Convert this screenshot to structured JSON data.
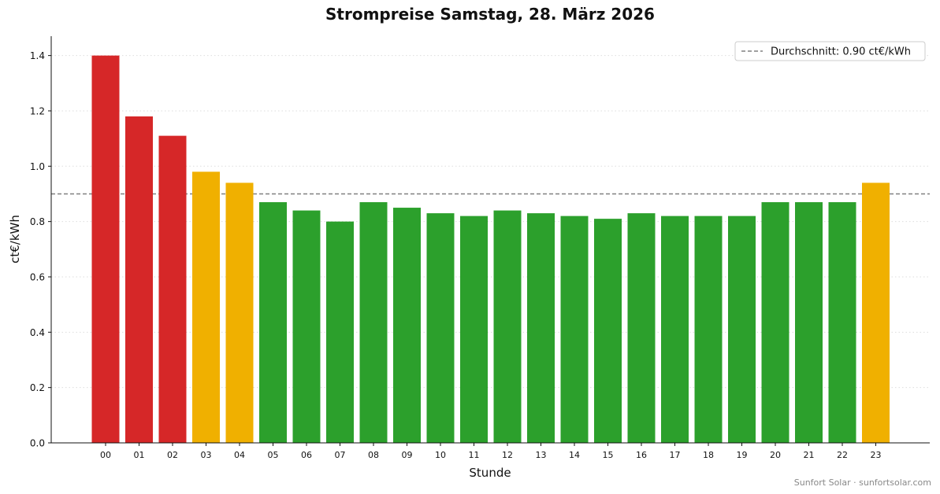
{
  "chart_data": {
    "type": "bar",
    "title": "Strompreise Samstag, 28. März 2026",
    "xlabel": "Stunde",
    "ylabel": "ct€/kWh",
    "ylim": [
      0,
      1.47
    ],
    "yticks": [
      "0.0",
      "0.2",
      "0.4",
      "0.6",
      "0.8",
      "1.0",
      "1.2",
      "1.4"
    ],
    "ytick_values": [
      0,
      0.2,
      0.4,
      0.6,
      0.8,
      1.0,
      1.2,
      1.4
    ],
    "grid": "horizontal dotted",
    "categories": [
      "00",
      "01",
      "02",
      "03",
      "04",
      "05",
      "06",
      "07",
      "08",
      "09",
      "10",
      "11",
      "12",
      "13",
      "14",
      "15",
      "16",
      "17",
      "18",
      "19",
      "20",
      "21",
      "22",
      "23"
    ],
    "values": [
      1.4,
      1.18,
      1.11,
      0.98,
      0.94,
      0.87,
      0.84,
      0.8,
      0.87,
      0.85,
      0.83,
      0.82,
      0.84,
      0.83,
      0.82,
      0.81,
      0.83,
      0.82,
      0.82,
      0.82,
      0.87,
      0.87,
      0.87,
      0.94
    ],
    "bar_colors": [
      "#d62728",
      "#d62728",
      "#d62728",
      "#f0b000",
      "#f0b000",
      "#2ca02c",
      "#2ca02c",
      "#2ca02c",
      "#2ca02c",
      "#2ca02c",
      "#2ca02c",
      "#2ca02c",
      "#2ca02c",
      "#2ca02c",
      "#2ca02c",
      "#2ca02c",
      "#2ca02c",
      "#2ca02c",
      "#2ca02c",
      "#2ca02c",
      "#2ca02c",
      "#2ca02c",
      "#2ca02c",
      "#f0b000"
    ],
    "average": {
      "value": 0.9,
      "label": "Durchschnitt: 0.90 ct€/kWh",
      "color": "#808080",
      "style": "dashed"
    },
    "legend": {
      "placement": "top-right"
    },
    "credit": "Sunfort Solar · sunfortsolar.com"
  }
}
